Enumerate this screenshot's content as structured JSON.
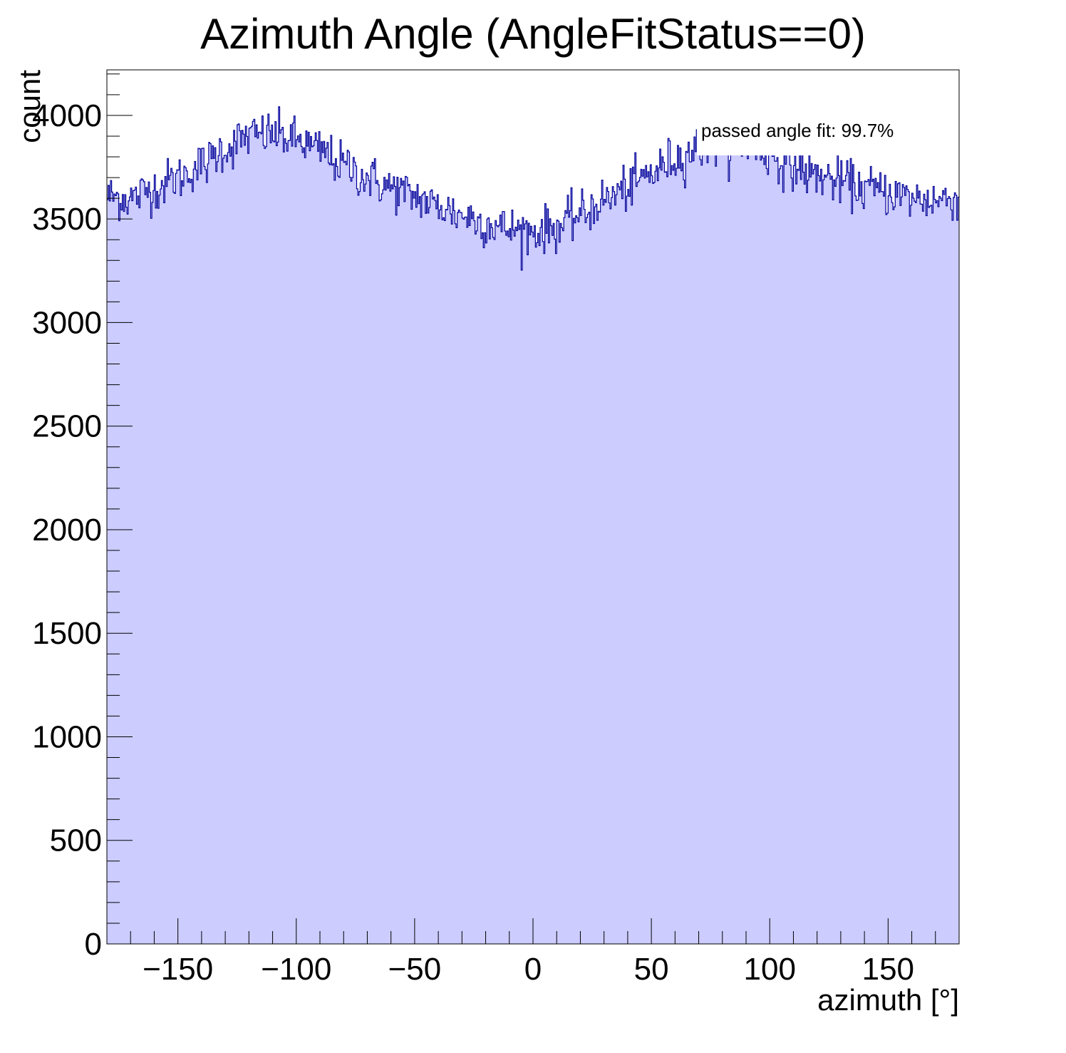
{
  "chart_data": {
    "type": "bar",
    "title": "Azimuth Angle (AngleFitStatus==0)",
    "xlabel": "azimuth [°]",
    "ylabel": "count",
    "xlim": [
      -180,
      180
    ],
    "ylim": [
      0,
      4220
    ],
    "x_ticks": [
      -150,
      -100,
      -50,
      0,
      50,
      100,
      150
    ],
    "x_tick_labels": [
      "−150",
      "−100",
      "−50",
      "0",
      "50",
      "100",
      "150"
    ],
    "y_ticks": [
      0,
      500,
      1000,
      1500,
      2000,
      2500,
      3000,
      3500,
      4000
    ],
    "y_tick_labels": [
      "0",
      "500",
      "1000",
      "1500",
      "2000",
      "2500",
      "3000",
      "3500",
      "4000"
    ],
    "bins": 720,
    "bin_width": 0.5,
    "profile": {
      "x": [
        -180,
        -170,
        -160,
        -150,
        -140,
        -130,
        -120,
        -110,
        -100,
        -90,
        -80,
        -70,
        -60,
        -50,
        -40,
        -30,
        -20,
        -10,
        0,
        10,
        20,
        30,
        40,
        50,
        60,
        70,
        80,
        90,
        100,
        110,
        120,
        130,
        140,
        150,
        160,
        170,
        180
      ],
      "y": [
        3610,
        3600,
        3650,
        3700,
        3760,
        3840,
        3900,
        3910,
        3880,
        3830,
        3760,
        3700,
        3650,
        3610,
        3560,
        3520,
        3480,
        3450,
        3440,
        3460,
        3520,
        3590,
        3650,
        3720,
        3790,
        3840,
        3870,
        3860,
        3810,
        3750,
        3710,
        3680,
        3650,
        3630,
        3600,
        3590,
        3610
      ]
    },
    "noise_amplitude": 55,
    "fill_color": "#ccccff",
    "line_color": "#000099",
    "annotation": "passed angle fit: 99.7%",
    "grid": false,
    "legend": "none"
  }
}
